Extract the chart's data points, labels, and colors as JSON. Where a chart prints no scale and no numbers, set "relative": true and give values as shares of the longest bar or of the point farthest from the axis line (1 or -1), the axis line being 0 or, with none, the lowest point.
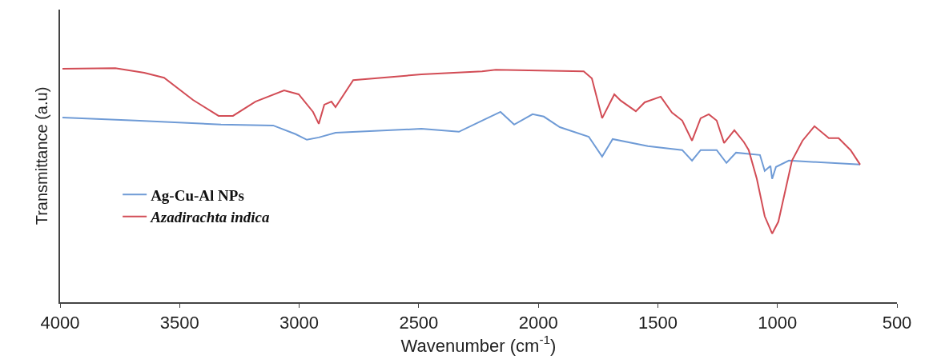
{
  "chart_data": {
    "type": "line",
    "xlabel": "Wavenumber (cm$^{-1}$)",
    "ylabel": "Transmittance (a.u)",
    "relative": true,
    "xlim": [
      4000,
      500
    ],
    "xticks": [
      4000,
      3500,
      3000,
      2500,
      2000,
      1500,
      1000,
      500
    ],
    "legend": "left",
    "marker": "none",
    "line_style": "solid",
    "series": [
      {
        "name": "Ag-Cu-Al NPs",
        "color": "#6f9bd6",
        "x": [
          3990,
          3685,
          3327,
          3109,
          3015,
          2968,
          2918,
          2848,
          2489,
          2332,
          2235,
          2158,
          2101,
          2024,
          1977,
          1910,
          1789,
          1733,
          1689,
          1542,
          1398,
          1357,
          1321,
          1254,
          1213,
          1173,
          1073,
          1053,
          1029,
          1022,
          1006,
          952,
          654
        ],
        "values": [
          0.789,
          0.776,
          0.759,
          0.755,
          0.718,
          0.694,
          0.704,
          0.724,
          0.741,
          0.728,
          0.776,
          0.813,
          0.759,
          0.803,
          0.793,
          0.748,
          0.707,
          0.622,
          0.697,
          0.667,
          0.65,
          0.605,
          0.65,
          0.65,
          0.595,
          0.639,
          0.629,
          0.561,
          0.582,
          0.527,
          0.578,
          0.605,
          0.588
        ]
      },
      {
        "name": "Azadirachta indica",
        "color": "#d24c55",
        "x": [
          3990,
          3769,
          3648,
          3565,
          3444,
          3337,
          3277,
          3183,
          3063,
          3002,
          2942,
          2918,
          2895,
          2865,
          2848,
          2774,
          2489,
          2235,
          2178,
          1810,
          1776,
          1733,
          1682,
          1655,
          1592,
          1555,
          1488,
          1441,
          1398,
          1357,
          1321,
          1287,
          1254,
          1223,
          1180,
          1140,
          1120,
          1086,
          1053,
          1022,
          996,
          939,
          895,
          845,
          785,
          744,
          694,
          654
        ],
        "values": [
          0.997,
          1.0,
          0.98,
          0.959,
          0.864,
          0.796,
          0.796,
          0.857,
          0.905,
          0.888,
          0.813,
          0.762,
          0.844,
          0.857,
          0.833,
          0.949,
          0.973,
          0.986,
          0.993,
          0.986,
          0.956,
          0.786,
          0.888,
          0.861,
          0.816,
          0.854,
          0.878,
          0.81,
          0.776,
          0.69,
          0.786,
          0.803,
          0.776,
          0.68,
          0.735,
          0.684,
          0.65,
          0.527,
          0.367,
          0.293,
          0.344,
          0.605,
          0.69,
          0.752,
          0.701,
          0.701,
          0.65,
          0.588
        ]
      }
    ]
  }
}
